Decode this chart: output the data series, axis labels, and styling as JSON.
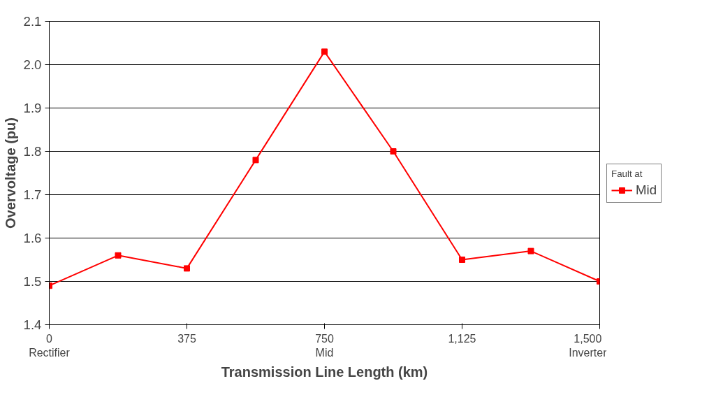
{
  "chart_data": {
    "type": "line",
    "xlabel": "Transmission Line Length (km)",
    "ylabel": "Overvoltage (pu)",
    "legend_title": "Fault at",
    "x": [
      0,
      187.5,
      375,
      562.5,
      750,
      937.5,
      1125,
      1312.5,
      1500
    ],
    "series": [
      {
        "name": "Mid",
        "color": "#ff0000",
        "values": [
          1.49,
          1.56,
          1.53,
          1.78,
          2.03,
          1.8,
          1.55,
          1.57,
          1.5
        ]
      }
    ],
    "xlim": [
      0,
      1500
    ],
    "xticks": [
      {
        "value": 0,
        "label": "0\nRectifier"
      },
      375,
      {
        "value": 750,
        "label": "750\nMid"
      },
      {
        "value": 1125,
        "label": "1,125"
      },
      {
        "value": 1500,
        "label": "1,500\nInverter"
      }
    ],
    "ylim": [
      1.4,
      2.1
    ],
    "yticks": [
      {
        "value": 1.4,
        "label": "1.4"
      },
      {
        "value": 1.5,
        "label": "1.5"
      },
      {
        "value": 1.6,
        "label": "1.6"
      },
      {
        "value": 1.7,
        "label": "1.7"
      },
      {
        "value": 1.8,
        "label": "1.8"
      },
      {
        "value": 1.9,
        "label": "1.9"
      },
      {
        "value": 2.0,
        "label": "2.0"
      },
      {
        "value": 2.1,
        "label": "2.1"
      }
    ],
    "grid": "y",
    "legend": "right",
    "marker": "square",
    "line_style": "solid"
  }
}
